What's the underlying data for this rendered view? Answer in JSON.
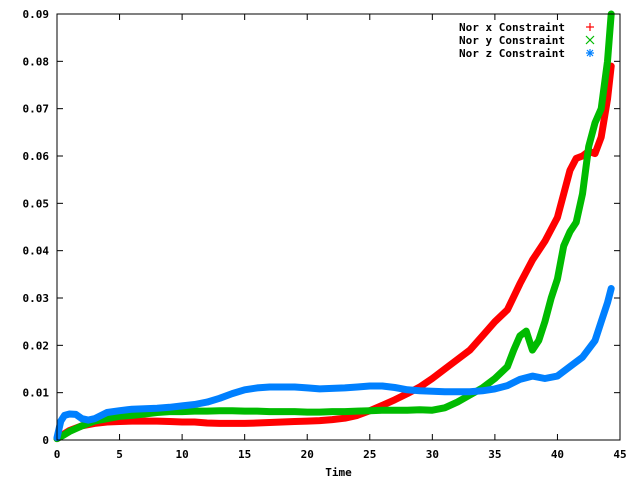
{
  "chart_data": {
    "type": "line",
    "title": "",
    "xlabel": "Time",
    "ylabel": "",
    "xlim": [
      0,
      45
    ],
    "ylim": [
      0,
      0.09
    ],
    "x_ticks": [
      "0",
      "5",
      "10",
      "15",
      "20",
      "25",
      "30",
      "35",
      "40",
      "45"
    ],
    "y_ticks": [
      "0",
      "0.01",
      "0.02",
      "0.03",
      "0.04",
      "0.05",
      "0.06",
      "0.07",
      "0.08",
      "0.09"
    ],
    "x_tick_values": [
      0,
      5,
      10,
      15,
      20,
      25,
      30,
      35,
      40,
      45
    ],
    "y_tick_values": [
      0,
      0.01,
      0.02,
      0.03,
      0.04,
      0.05,
      0.06,
      0.07,
      0.08,
      0.09
    ],
    "grid": false,
    "legend_position": "top-right",
    "series": [
      {
        "name": "Nor x Constraint",
        "color": "#ff0000",
        "marker": "plus",
        "x": [
          0,
          0.5,
          1,
          2,
          3,
          4,
          5,
          6,
          7,
          8,
          9,
          10,
          11,
          12,
          13,
          14,
          15,
          16,
          17,
          18,
          19,
          20,
          21,
          22,
          23,
          24,
          25,
          26,
          27,
          28,
          29,
          30,
          31,
          32,
          33,
          34,
          35,
          36,
          37,
          38,
          39,
          40,
          40.5,
          41,
          41.5,
          42,
          42.5,
          43,
          43.5,
          44,
          44.3
        ],
        "y": [
          0.0003,
          0.0012,
          0.002,
          0.003,
          0.0035,
          0.0038,
          0.0039,
          0.004,
          0.004,
          0.004,
          0.0039,
          0.0038,
          0.0038,
          0.0036,
          0.0035,
          0.0035,
          0.0035,
          0.0036,
          0.0037,
          0.0038,
          0.0039,
          0.004,
          0.0041,
          0.0043,
          0.0046,
          0.0052,
          0.0062,
          0.0073,
          0.0085,
          0.0098,
          0.0112,
          0.013,
          0.015,
          0.017,
          0.019,
          0.022,
          0.025,
          0.0275,
          0.033,
          0.038,
          0.042,
          0.047,
          0.052,
          0.057,
          0.0595,
          0.06,
          0.061,
          0.0605,
          0.064,
          0.072,
          0.079
        ]
      },
      {
        "name": "Nor y Constraint",
        "color": "#00bb00",
        "marker": "cross",
        "x": [
          0,
          0.5,
          1,
          2,
          3,
          4,
          5,
          6,
          7,
          8,
          9,
          10,
          11,
          12,
          13,
          14,
          15,
          16,
          17,
          18,
          19,
          20,
          21,
          22,
          23,
          24,
          25,
          26,
          27,
          28,
          29,
          30,
          31,
          32,
          33,
          34,
          35,
          36,
          36.5,
          37,
          37.5,
          38,
          38.5,
          39,
          39.5,
          40,
          40.5,
          41,
          41.5,
          42,
          42.5,
          43,
          43.5,
          44,
          44.3
        ],
        "y": [
          0.0003,
          0.001,
          0.0018,
          0.003,
          0.004,
          0.0045,
          0.005,
          0.0052,
          0.0055,
          0.0058,
          0.006,
          0.006,
          0.0061,
          0.0061,
          0.0062,
          0.0062,
          0.0061,
          0.0061,
          0.006,
          0.006,
          0.006,
          0.0059,
          0.0059,
          0.006,
          0.006,
          0.0061,
          0.0062,
          0.0063,
          0.0063,
          0.0063,
          0.0064,
          0.0063,
          0.0068,
          0.008,
          0.0095,
          0.011,
          0.013,
          0.0155,
          0.019,
          0.022,
          0.023,
          0.019,
          0.021,
          0.025,
          0.03,
          0.034,
          0.041,
          0.044,
          0.046,
          0.052,
          0.062,
          0.067,
          0.07,
          0.08,
          0.09
        ]
      },
      {
        "name": "Nor z Constraint",
        "color": "#0080ff",
        "marker": "star",
        "x": [
          0,
          0.3,
          0.6,
          1,
          1.5,
          2,
          2.5,
          3,
          4,
          5,
          6,
          7,
          8,
          9,
          10,
          11,
          12,
          13,
          14,
          15,
          16,
          17,
          18,
          19,
          20,
          21,
          22,
          23,
          24,
          25,
          26,
          27,
          28,
          29,
          30,
          31,
          32,
          33,
          34,
          35,
          36,
          37,
          38,
          39,
          40,
          41,
          42,
          43,
          43.5,
          44,
          44.3
        ],
        "y": [
          0.0005,
          0.004,
          0.0052,
          0.0055,
          0.0054,
          0.0045,
          0.0042,
          0.0045,
          0.0058,
          0.0062,
          0.0065,
          0.0066,
          0.0067,
          0.0069,
          0.0072,
          0.0075,
          0.008,
          0.0088,
          0.0098,
          0.0106,
          0.011,
          0.0112,
          0.0112,
          0.0112,
          0.011,
          0.0108,
          0.0109,
          0.011,
          0.0112,
          0.0114,
          0.0114,
          0.0111,
          0.0106,
          0.0104,
          0.0103,
          0.0102,
          0.0102,
          0.0102,
          0.0104,
          0.0108,
          0.0115,
          0.0128,
          0.0135,
          0.013,
          0.0135,
          0.0155,
          0.0175,
          0.021,
          0.025,
          0.029,
          0.032
        ]
      }
    ]
  }
}
